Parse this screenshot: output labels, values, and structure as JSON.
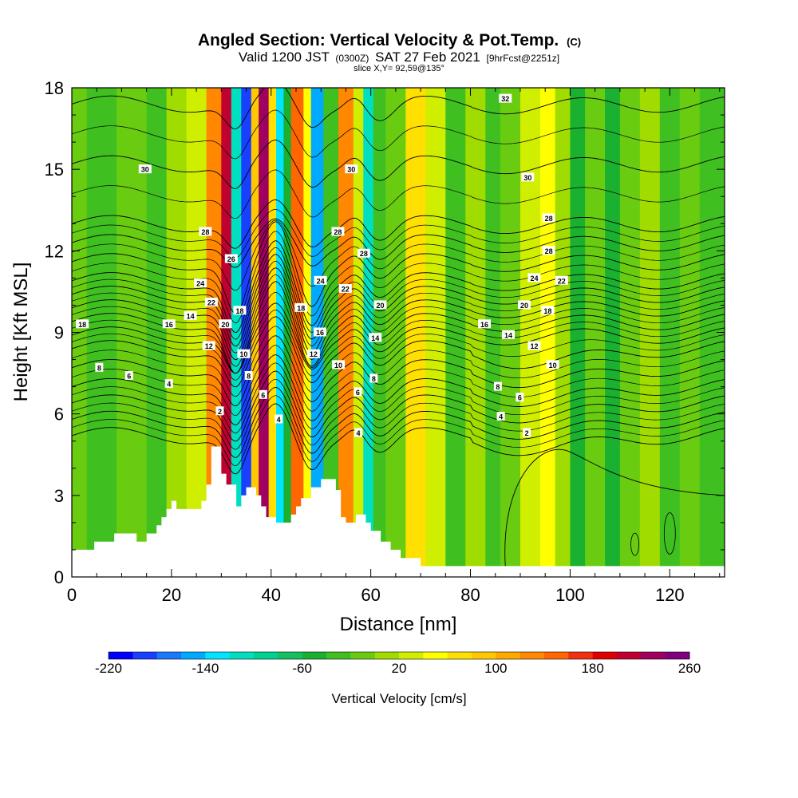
{
  "header": {
    "title": "Angled Section: Vertical Velocity & Pot.Temp.",
    "title_unit": "(C)",
    "subtitle_a": "Valid 1200 JST",
    "subtitle_b": "(0300Z)",
    "subtitle_c": "SAT 27 Feb 2021",
    "subtitle_d": "[9hrFcst@2251z]",
    "slice": "slice X,Y= 92,59@135°"
  },
  "chart_data": {
    "type": "heatmap",
    "xlabel": "Distance [nm]",
    "ylabel": "Height [Kft MSL]",
    "xlim": [
      0,
      131
    ],
    "ylim": [
      0,
      18
    ],
    "xticks": [
      0,
      20,
      40,
      60,
      80,
      100,
      120
    ],
    "yticks": [
      0,
      3,
      6,
      9,
      12,
      15,
      18
    ],
    "colorbar": {
      "label": "Vertical Velocity [cm/s]",
      "range": [
        -220,
        260
      ],
      "step": 20,
      "tick_labels": [
        -220,
        -140,
        -60,
        20,
        100,
        180,
        260
      ],
      "colors": [
        "#0000ff",
        "#1a40ff",
        "#1a78ff",
        "#00aaff",
        "#00e5ff",
        "#00e0c0",
        "#00d090",
        "#14c060",
        "#1ab030",
        "#40c020",
        "#6acc10",
        "#a0dc00",
        "#d0ee00",
        "#ffff00",
        "#ffe000",
        "#ffc800",
        "#ffa800",
        "#ff8800",
        "#ff6600",
        "#f03010",
        "#e00000",
        "#c00030",
        "#a00060",
        "#800080"
      ]
    },
    "velocity_columns": [
      {
        "x": 0,
        "w": 3,
        "v": -20
      },
      {
        "x": 3,
        "w": 6,
        "v": -40
      },
      {
        "x": 9,
        "w": 6,
        "v": -20
      },
      {
        "x": 15,
        "w": 4,
        "v": -30
      },
      {
        "x": 19,
        "w": 4,
        "v": 0
      },
      {
        "x": 23,
        "w": 4,
        "v": 20
      },
      {
        "x": 27,
        "w": 3,
        "v": 120
      },
      {
        "x": 30,
        "w": 2,
        "v": 200
      },
      {
        "x": 32,
        "w": 2,
        "v": -120
      },
      {
        "x": 34,
        "w": 2,
        "v": -200
      },
      {
        "x": 36,
        "w": 1.5,
        "v": 80
      },
      {
        "x": 37.5,
        "w": 2,
        "v": 220
      },
      {
        "x": 39.5,
        "w": 1.5,
        "v": 60
      },
      {
        "x": 41,
        "w": 1.5,
        "v": -140
      },
      {
        "x": 42.5,
        "w": 1.5,
        "v": -60
      },
      {
        "x": 44,
        "w": 2.5,
        "v": 140
      },
      {
        "x": 46.5,
        "w": 1.5,
        "v": 40
      },
      {
        "x": 48,
        "w": 2.5,
        "v": -150
      },
      {
        "x": 50.5,
        "w": 3,
        "v": -40
      },
      {
        "x": 53.5,
        "w": 3,
        "v": 120
      },
      {
        "x": 56.5,
        "w": 2,
        "v": 20
      },
      {
        "x": 58.5,
        "w": 2,
        "v": -120
      },
      {
        "x": 60.5,
        "w": 2.5,
        "v": -40
      },
      {
        "x": 63,
        "w": 4,
        "v": -20
      },
      {
        "x": 67,
        "w": 4,
        "v": 60
      },
      {
        "x": 71,
        "w": 4,
        "v": 20
      },
      {
        "x": 75,
        "w": 4,
        "v": -40
      },
      {
        "x": 79,
        "w": 4,
        "v": 0
      },
      {
        "x": 83,
        "w": 3,
        "v": -40
      },
      {
        "x": 86,
        "w": 4,
        "v": -20
      },
      {
        "x": 90,
        "w": 4,
        "v": 20
      },
      {
        "x": 94,
        "w": 3,
        "v": 40
      },
      {
        "x": 97,
        "w": 3,
        "v": 0
      },
      {
        "x": 100,
        "w": 3,
        "v": -60
      },
      {
        "x": 103,
        "w": 4,
        "v": -20
      },
      {
        "x": 107,
        "w": 3,
        "v": -60
      },
      {
        "x": 110,
        "w": 4,
        "v": -20
      },
      {
        "x": 114,
        "w": 4,
        "v": 0
      },
      {
        "x": 118,
        "w": 4,
        "v": -40
      },
      {
        "x": 122,
        "w": 4,
        "v": -20
      },
      {
        "x": 126,
        "w": 5,
        "v": -40
      }
    ],
    "terrain": [
      [
        0,
        1.0
      ],
      [
        4.5,
        1.0
      ],
      [
        4.5,
        1.3
      ],
      [
        8.5,
        1.3
      ],
      [
        8.5,
        1.6
      ],
      [
        13,
        1.6
      ],
      [
        13,
        1.3
      ],
      [
        15,
        1.3
      ],
      [
        15,
        1.6
      ],
      [
        17,
        1.6
      ],
      [
        17,
        1.9
      ],
      [
        18,
        1.9
      ],
      [
        18,
        2.2
      ],
      [
        19,
        2.2
      ],
      [
        19,
        2.5
      ],
      [
        20,
        2.5
      ],
      [
        20,
        2.8
      ],
      [
        21,
        2.8
      ],
      [
        21,
        2.5
      ],
      [
        26,
        2.5
      ],
      [
        26,
        2.8
      ],
      [
        27,
        2.8
      ],
      [
        27,
        3.4
      ],
      [
        28,
        3.4
      ],
      [
        28,
        4.8
      ],
      [
        30,
        4.8
      ],
      [
        30,
        3.8
      ],
      [
        31,
        3.8
      ],
      [
        31,
        3.4
      ],
      [
        33,
        3.4
      ],
      [
        33,
        2.6
      ],
      [
        34,
        2.6
      ],
      [
        34,
        3.0
      ],
      [
        35,
        3.0
      ],
      [
        35,
        3.3
      ],
      [
        37,
        3.3
      ],
      [
        37,
        3.0
      ],
      [
        38,
        3.0
      ],
      [
        38,
        2.6
      ],
      [
        39,
        2.6
      ],
      [
        39,
        2.2
      ],
      [
        41,
        2.2
      ],
      [
        41,
        2.0
      ],
      [
        44,
        2.0
      ],
      [
        44,
        2.3
      ],
      [
        45,
        2.3
      ],
      [
        45,
        2.6
      ],
      [
        46,
        2.6
      ],
      [
        46,
        2.9
      ],
      [
        48,
        2.9
      ],
      [
        48,
        3.3
      ],
      [
        50,
        3.3
      ],
      [
        50,
        3.6
      ],
      [
        53,
        3.6
      ],
      [
        53,
        3.2
      ],
      [
        54,
        3.2
      ],
      [
        54,
        2.2
      ],
      [
        55,
        2.2
      ],
      [
        55,
        2.0
      ],
      [
        57,
        2.0
      ],
      [
        57,
        2.3
      ],
      [
        59,
        2.3
      ],
      [
        59,
        2.0
      ],
      [
        60,
        2.0
      ],
      [
        60,
        1.7
      ],
      [
        62,
        1.7
      ],
      [
        62,
        1.3
      ],
      [
        64,
        1.3
      ],
      [
        64,
        1.0
      ],
      [
        66,
        1.0
      ],
      [
        66,
        0.7
      ],
      [
        70,
        0.7
      ],
      [
        70,
        0.4
      ],
      [
        131,
        0.4
      ]
    ],
    "contour_levels": [
      2,
      4,
      6,
      8,
      10,
      12,
      14,
      16,
      18,
      20,
      22,
      24,
      26,
      28,
      30,
      32
    ],
    "contour_labels": [
      {
        "x": 29.7,
        "y": 6.1,
        "t": "2"
      },
      {
        "x": 41.5,
        "y": 5.8,
        "t": "4"
      },
      {
        "x": 57.5,
        "y": 5.3,
        "t": "4"
      },
      {
        "x": 91.3,
        "y": 5.3,
        "t": "2"
      },
      {
        "x": 86.1,
        "y": 5.9,
        "t": "4"
      },
      {
        "x": 19.5,
        "y": 7.1,
        "t": "4"
      },
      {
        "x": 11.5,
        "y": 7.4,
        "t": "6"
      },
      {
        "x": 38.4,
        "y": 6.7,
        "t": "6"
      },
      {
        "x": 57.4,
        "y": 6.8,
        "t": "6"
      },
      {
        "x": 89.9,
        "y": 6.6,
        "t": "6"
      },
      {
        "x": 5.5,
        "y": 7.7,
        "t": "8"
      },
      {
        "x": 35.5,
        "y": 7.4,
        "t": "8"
      },
      {
        "x": 60.6,
        "y": 7.3,
        "t": "8"
      },
      {
        "x": 85.5,
        "y": 7.0,
        "t": "8"
      },
      {
        "x": 34.5,
        "y": 8.2,
        "t": "10"
      },
      {
        "x": 53.5,
        "y": 7.8,
        "t": "10"
      },
      {
        "x": 96.5,
        "y": 7.8,
        "t": "10"
      },
      {
        "x": 27.5,
        "y": 8.5,
        "t": "12"
      },
      {
        "x": 48.5,
        "y": 8.2,
        "t": "12"
      },
      {
        "x": 92.8,
        "y": 8.5,
        "t": "12"
      },
      {
        "x": 23.8,
        "y": 9.6,
        "t": "14"
      },
      {
        "x": 60.9,
        "y": 8.8,
        "t": "14"
      },
      {
        "x": 87.6,
        "y": 8.9,
        "t": "14"
      },
      {
        "x": 2.1,
        "y": 9.3,
        "t": "18"
      },
      {
        "x": 19.5,
        "y": 9.3,
        "t": "16"
      },
      {
        "x": 49.8,
        "y": 9.0,
        "t": "16"
      },
      {
        "x": 82.8,
        "y": 9.3,
        "t": "16"
      },
      {
        "x": 33.7,
        "y": 9.8,
        "t": "18"
      },
      {
        "x": 46.0,
        "y": 9.9,
        "t": "18"
      },
      {
        "x": 95.5,
        "y": 9.8,
        "t": "18"
      },
      {
        "x": 30.8,
        "y": 9.3,
        "t": "20"
      },
      {
        "x": 61.9,
        "y": 10.0,
        "t": "20"
      },
      {
        "x": 90.8,
        "y": 10.0,
        "t": "20"
      },
      {
        "x": 28.0,
        "y": 10.1,
        "t": "22"
      },
      {
        "x": 54.9,
        "y": 10.6,
        "t": "22"
      },
      {
        "x": 98.3,
        "y": 10.9,
        "t": "22"
      },
      {
        "x": 25.8,
        "y": 10.8,
        "t": "24"
      },
      {
        "x": 49.9,
        "y": 10.9,
        "t": "24"
      },
      {
        "x": 92.8,
        "y": 11.0,
        "t": "24"
      },
      {
        "x": 32.0,
        "y": 11.7,
        "t": "26"
      },
      {
        "x": 26.8,
        "y": 12.7,
        "t": "28"
      },
      {
        "x": 53.4,
        "y": 12.7,
        "t": "28"
      },
      {
        "x": 58.6,
        "y": 11.9,
        "t": "28"
      },
      {
        "x": 95.7,
        "y": 13.2,
        "t": "28"
      },
      {
        "x": 95.7,
        "y": 12.0,
        "t": "28"
      },
      {
        "x": 14.7,
        "y": 15.0,
        "t": "30"
      },
      {
        "x": 56.1,
        "y": 15.0,
        "t": "30"
      },
      {
        "x": 91.5,
        "y": 14.7,
        "t": "30"
      },
      {
        "x": 87.0,
        "y": 17.6,
        "t": "32"
      }
    ]
  }
}
